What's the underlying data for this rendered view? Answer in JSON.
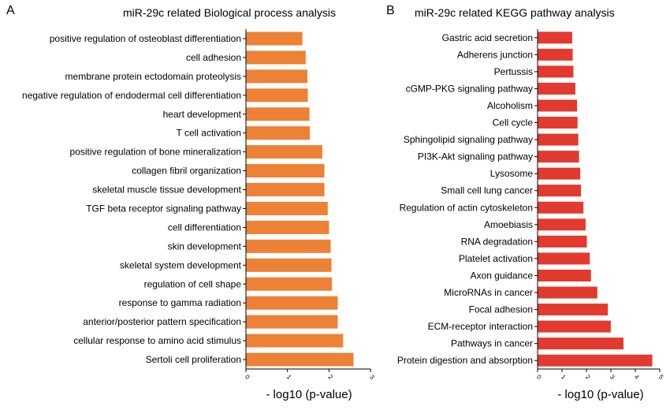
{
  "chart_data": [
    {
      "type": "bar",
      "orientation": "horizontal",
      "panel_label": "A",
      "title": "miR-29c related Biological process analysis",
      "xlabel": "- log10 (p-value)",
      "xlim": [
        0,
        3
      ],
      "xticks": [
        "0",
        "1",
        "2",
        "3"
      ],
      "color": "#ED8136",
      "categories": [
        "positive regulation of osteoblast differentiation",
        "cell adhesion",
        "membrane protein ectodomain proteolysis",
        "negative regulation of endodermal cell differentiation",
        "heart development",
        "T cell activation",
        "positive regulation of bone mineralization",
        "collagen fibril organization",
        "skeletal muscle tissue development",
        "TGF beta receptor signaling pathway",
        "cell differentiation",
        "skin development",
        "skeletal system development",
        "regulation of cell shape",
        "response to gamma radiation",
        "anterior/posterior pattern specification",
        "cellular response to amino acid stimulus",
        "Sertoli cell proliferation"
      ],
      "values": [
        1.35,
        1.43,
        1.47,
        1.48,
        1.52,
        1.53,
        1.83,
        1.88,
        1.88,
        1.96,
        1.99,
        2.03,
        2.05,
        2.06,
        2.2,
        2.2,
        2.33,
        2.58
      ]
    },
    {
      "type": "bar",
      "orientation": "horizontal",
      "panel_label": "B",
      "title": "miR-29c related KEGG pathway analysis",
      "xlabel": "- log10 (p-value)",
      "xlim": [
        0,
        5
      ],
      "xticks": [
        "0",
        "1",
        "2",
        "3",
        "4",
        "5"
      ],
      "color": "#E23A2E",
      "categories": [
        "Gastric acid secretion",
        "Adherens junction",
        "Pertussis",
        "cGMP-PKG signaling pathway",
        "Alcoholism",
        "Cell cycle",
        "Sphingolipid signaling pathway",
        "PI3K-Akt signaling pathway",
        "Lysosome",
        "Small cell lung cancer",
        "Regulation of actin cytoskeleton",
        "Amoebiasis",
        "RNA degradation",
        "Platelet activation",
        "Axon guidance",
        "MicroRNAs in cancer",
        "Focal adhesion",
        "ECM-receptor interaction",
        "Pathways in cancer",
        "Protein digestion and absorption"
      ],
      "values": [
        1.4,
        1.42,
        1.45,
        1.53,
        1.6,
        1.62,
        1.65,
        1.68,
        1.73,
        1.76,
        1.86,
        1.95,
        2.0,
        2.12,
        2.17,
        2.43,
        2.86,
        2.98,
        3.5,
        4.68
      ]
    }
  ]
}
